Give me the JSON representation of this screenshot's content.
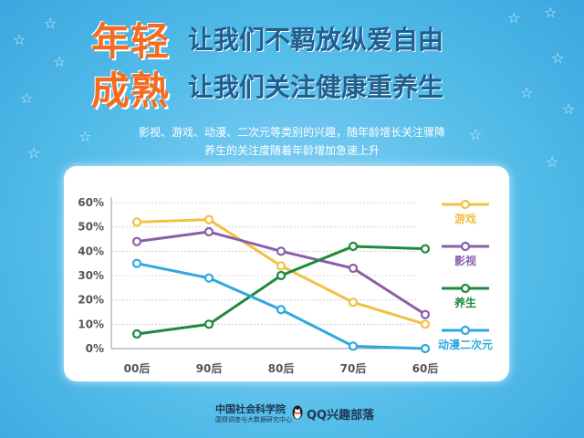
{
  "headline": {
    "big1": "年轻",
    "sub1": "让我们不羁放纵爱自由",
    "big2": "成熟",
    "sub2": "让我们关注健康重养生"
  },
  "description": {
    "line1": "影视、游戏、动漫、二次元等类别的兴趣，随年龄增长关注骤降",
    "line2": "养生的关注度随着年龄增加急速上升"
  },
  "footer": {
    "org_name": "中国社会科学院",
    "org_sub": "国情调查与大数据研究中心",
    "qq_brand": "QQ兴趣部落"
  },
  "colors": {
    "accent_orange": "#f36c21",
    "title_blue": "#1f5f8f"
  },
  "icons": [
    "star-icon",
    "qq-penguin-icon"
  ],
  "chart_data": {
    "type": "line",
    "categories": [
      "00后",
      "90后",
      "80后",
      "70后",
      "60后"
    ],
    "ylim": [
      0,
      60
    ],
    "yticks": [
      "0%",
      "10%",
      "20%",
      "30%",
      "40%",
      "50%",
      "60%"
    ],
    "grid": true,
    "legend_position": "right",
    "series": [
      {
        "name": "游戏",
        "color": "#f2c044",
        "values": [
          52,
          53,
          34,
          19,
          10
        ]
      },
      {
        "name": "影视",
        "color": "#8a5fa8",
        "values": [
          44,
          48,
          40,
          33,
          14
        ]
      },
      {
        "name": "养生",
        "color": "#1e8a3c",
        "values": [
          6,
          10,
          30,
          42,
          41
        ]
      },
      {
        "name": "动漫二次元",
        "color": "#2fa7dd",
        "values": [
          35,
          29,
          16,
          1,
          0
        ]
      }
    ]
  }
}
